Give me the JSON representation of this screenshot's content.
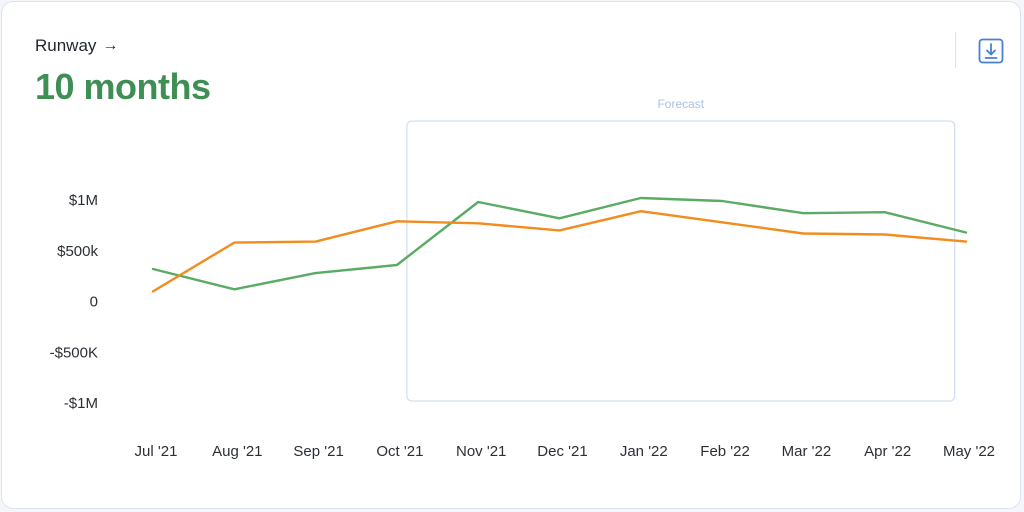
{
  "header": {
    "title": "Runway",
    "title_arrow": "→",
    "value": "10 months"
  },
  "toolbar": {
    "download_icon": "download-icon"
  },
  "colors": {
    "value_green": "#3f8f55",
    "series_green": "#5aab64",
    "series_orange": "#f28c1e",
    "forecast_border": "#d3e1ee"
  },
  "chart_data": {
    "type": "line",
    "x": [
      "Jul '21",
      "Aug '21",
      "Sep '21",
      "Oct '21",
      "Nov '21",
      "Dec '21",
      "Jan '22",
      "Feb '22",
      "Mar '22",
      "Apr '22",
      "May '22"
    ],
    "y_ticks": [
      {
        "value": 1000000,
        "label": "$1M"
      },
      {
        "value": 500000,
        "label": "$500k"
      },
      {
        "value": 0,
        "label": "0"
      },
      {
        "value": -500000,
        "label": "-$500K"
      },
      {
        "value": -1000000,
        "label": "-$1M"
      }
    ],
    "ylim": [
      -1000000,
      1000000
    ],
    "grid": false,
    "forecast": {
      "label": "Forecast",
      "from": "Oct '21",
      "to": "Apr '22"
    },
    "series": [
      {
        "color": "#5aab64",
        "values": [
          320000,
          120000,
          280000,
          360000,
          980000,
          820000,
          1020000,
          990000,
          870000,
          880000,
          680000
        ]
      },
      {
        "color": "#f28c1e",
        "values": [
          100000,
          580000,
          590000,
          790000,
          770000,
          700000,
          890000,
          780000,
          670000,
          660000,
          590000
        ]
      }
    ]
  }
}
